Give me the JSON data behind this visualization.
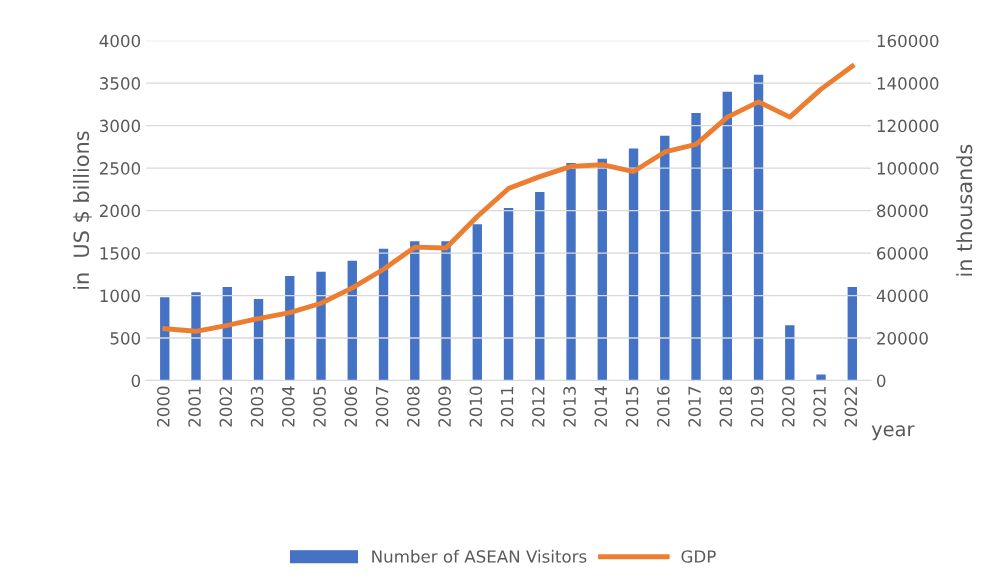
{
  "chart_data": {
    "type": "bar",
    "xlabel": "year",
    "ylabel": "in  US $ billions",
    "y2label": "in thousands",
    "categories": [
      "2000",
      "2001",
      "2002",
      "2003",
      "2004",
      "2005",
      "2006",
      "2007",
      "2008",
      "2009",
      "2010",
      "2011",
      "2012",
      "2013",
      "2014",
      "2015",
      "2016",
      "2017",
      "2018",
      "2019",
      "2020",
      "2021",
      "2022"
    ],
    "series": [
      {
        "name": "Number of ASEAN Visitors",
        "axis": "y2",
        "color": "#4472c4",
        "values": [
          39200,
          41600,
          44000,
          38400,
          49200,
          51200,
          56400,
          62000,
          65600,
          65600,
          73600,
          81200,
          88800,
          102400,
          104400,
          109200,
          115200,
          126000,
          136000,
          144000,
          26000,
          2800,
          44000
        ]
      },
      {
        "name": "GDP",
        "type": "line",
        "axis": "y",
        "color": "#ed7d31",
        "values": [
          610,
          580,
          650,
          730,
          800,
          910,
          1090,
          1310,
          1570,
          1560,
          1930,
          2260,
          2400,
          2520,
          2540,
          2460,
          2690,
          2780,
          3100,
          3280,
          3100,
          3430,
          3700
        ]
      }
    ],
    "ylim": [
      0,
      4000
    ],
    "yticks": [
      0,
      500,
      1000,
      1500,
      2000,
      2500,
      3000,
      3500,
      4000
    ],
    "y2lim": [
      0,
      160000
    ],
    "y2ticks": [
      0,
      20000,
      40000,
      60000,
      80000,
      100000,
      120000,
      140000,
      160000
    ],
    "grid": "y",
    "legend": "bottom",
    "marker": "none",
    "line_style": "solid"
  }
}
